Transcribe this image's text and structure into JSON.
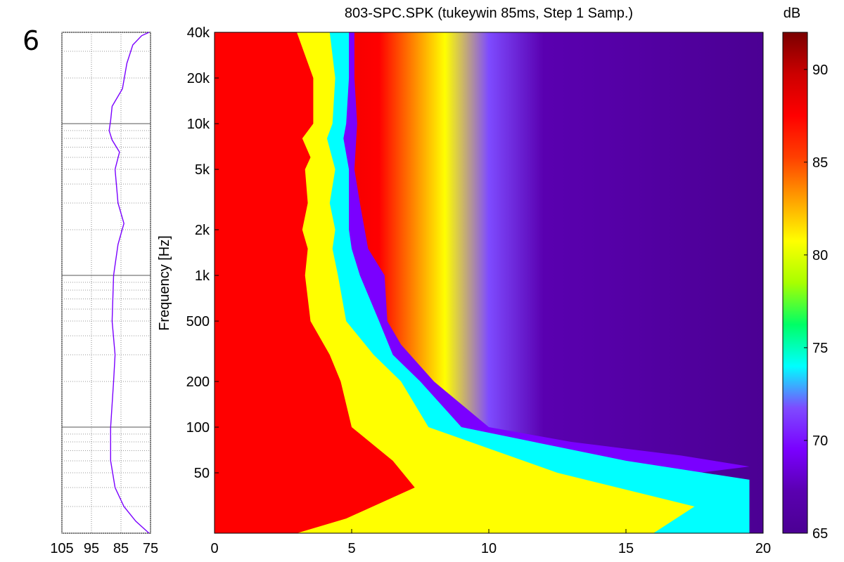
{
  "panel_label": "6",
  "colors": {
    "colormap": [
      "#4b0093",
      "#5a00b0",
      "#7a00ff",
      "#7e4bff",
      "#00ffff",
      "#00ff66",
      "#a8ff00",
      "#ffff00",
      "#ffa000",
      "#ff4000",
      "#ff0000",
      "#cc0000",
      "#7a0000"
    ],
    "response_line": "#7a00ff"
  },
  "chart_data": [
    {
      "type": "line",
      "name": "frequency-response",
      "xlim": [
        105,
        75
      ],
      "xticks": [
        "105",
        "95",
        "85",
        "75"
      ],
      "ylim": [
        20,
        40000
      ],
      "yscale": "log",
      "grid": true,
      "points": [
        {
          "db": 75.5,
          "hz": 20
        },
        {
          "db": 80,
          "hz": 24
        },
        {
          "db": 84,
          "hz": 30
        },
        {
          "db": 87,
          "hz": 40
        },
        {
          "db": 88.5,
          "hz": 60
        },
        {
          "db": 88.5,
          "hz": 100
        },
        {
          "db": 87.5,
          "hz": 200
        },
        {
          "db": 87,
          "hz": 300
        },
        {
          "db": 88,
          "hz": 500
        },
        {
          "db": 87.5,
          "hz": 1000
        },
        {
          "db": 86,
          "hz": 1600
        },
        {
          "db": 84,
          "hz": 2200
        },
        {
          "db": 86,
          "hz": 3000
        },
        {
          "db": 87,
          "hz": 5000
        },
        {
          "db": 85.5,
          "hz": 6500
        },
        {
          "db": 88,
          "hz": 7800
        },
        {
          "db": 89,
          "hz": 9000
        },
        {
          "db": 88.5,
          "hz": 10500
        },
        {
          "db": 88,
          "hz": 13000
        },
        {
          "db": 84.5,
          "hz": 17000
        },
        {
          "db": 83,
          "hz": 25000
        },
        {
          "db": 81,
          "hz": 33000
        },
        {
          "db": 78,
          "hz": 38000
        },
        {
          "db": 75.5,
          "hz": 40000
        }
      ]
    },
    {
      "type": "heatmap",
      "title": "803-SPC.SPK (tukeywin 85ms, Step 1 Samp.)",
      "xlim": [
        0,
        20
      ],
      "xticks": [
        "0",
        "5",
        "10",
        "15",
        "20"
      ],
      "ylabel": "Frequency [Hz]",
      "yscale": "log",
      "ylim": [
        20,
        40000
      ],
      "yticks": [
        {
          "label": "50",
          "hz": 50
        },
        {
          "label": "100",
          "hz": 100
        },
        {
          "label": "200",
          "hz": 200
        },
        {
          "label": "500",
          "hz": 500
        },
        {
          "label": "1k",
          "hz": 1000
        },
        {
          "label": "2k",
          "hz": 2000
        },
        {
          "label": "5k",
          "hz": 5000
        },
        {
          "label": "10k",
          "hz": 10000
        },
        {
          "label": "20k",
          "hz": 20000
        },
        {
          "label": "40k",
          "hz": 40000
        }
      ],
      "colorbar": {
        "label": "dB",
        "range": [
          65,
          92
        ],
        "ticks": [
          "65",
          "70",
          "75",
          "80",
          "85",
          "90"
        ]
      },
      "decay_contours": [
        {
          "level": 85,
          "points": [
            [
              3.0,
              40000
            ],
            [
              3.6,
              20000
            ],
            [
              3.6,
              10000
            ],
            [
              3.2,
              8000
            ],
            [
              3.5,
              6000
            ],
            [
              3.3,
              5000
            ],
            [
              3.4,
              3000
            ],
            [
              3.2,
              2000
            ],
            [
              3.4,
              1500
            ],
            [
              3.3,
              1000
            ],
            [
              3.5,
              500
            ],
            [
              4.2,
              300
            ],
            [
              4.6,
              200
            ],
            [
              5.0,
              100
            ],
            [
              6.5,
              60
            ],
            [
              7.3,
              40
            ],
            [
              4.8,
              25
            ],
            [
              3.0,
              20
            ]
          ]
        },
        {
          "level": 78,
          "points": [
            [
              4.2,
              40000
            ],
            [
              4.4,
              20000
            ],
            [
              4.3,
              10000
            ],
            [
              4.1,
              8000
            ],
            [
              4.4,
              5000
            ],
            [
              4.2,
              3000
            ],
            [
              4.4,
              2000
            ],
            [
              4.3,
              1500
            ],
            [
              4.5,
              1000
            ],
            [
              4.8,
              500
            ],
            [
              5.8,
              300
            ],
            [
              6.8,
              200
            ],
            [
              7.8,
              100
            ],
            [
              12.5,
              50
            ],
            [
              17.5,
              30
            ],
            [
              16,
              20
            ]
          ]
        },
        {
          "level": 72,
          "points": [
            [
              4.9,
              40000
            ],
            [
              4.9,
              20000
            ],
            [
              4.8,
              10000
            ],
            [
              4.7,
              8000
            ],
            [
              4.9,
              5000
            ],
            [
              4.9,
              3000
            ],
            [
              4.9,
              2000
            ],
            [
              5.0,
              1500
            ],
            [
              5.3,
              1000
            ],
            [
              6.0,
              500
            ],
            [
              6.5,
              300
            ],
            [
              7.5,
              200
            ],
            [
              9,
              100
            ],
            [
              15,
              60
            ],
            [
              19.5,
              45
            ],
            [
              19.5,
              20
            ]
          ]
        },
        {
          "level": 69,
          "points": [
            [
              5.1,
              40000
            ],
            [
              5.1,
              20000
            ],
            [
              5.2,
              10000
            ],
            [
              5.1,
              5000
            ],
            [
              5.3,
              3000
            ],
            [
              5.6,
              1500
            ],
            [
              6.2,
              1000
            ],
            [
              6.3,
              500
            ],
            [
              6.8,
              350
            ],
            [
              8,
              200
            ],
            [
              10,
              100
            ],
            [
              13,
              80
            ],
            [
              17,
              65
            ],
            [
              19.5,
              55
            ]
          ]
        }
      ]
    }
  ]
}
